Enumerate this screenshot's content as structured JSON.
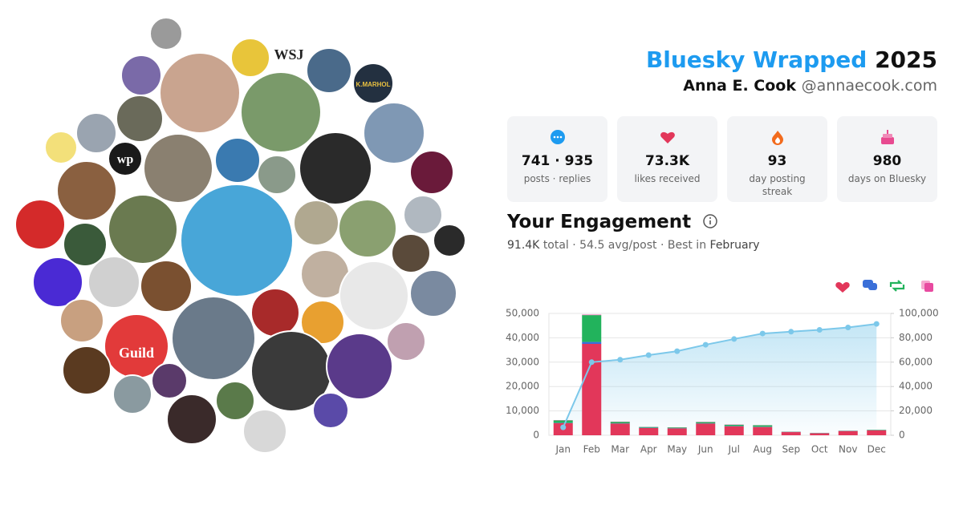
{
  "header": {
    "title_brand": "Bluesky Wrapped",
    "title_year": "2025",
    "name": "Anna E. Cook",
    "handle": "@annaecook.com"
  },
  "collage": {
    "labels": [
      "WSJ",
      "wp",
      "K.MARHOL",
      "Guild"
    ]
  },
  "stats": [
    {
      "value": "741 · 935",
      "label": "posts · replies"
    },
    {
      "value": "73.3K",
      "label": "likes received"
    },
    {
      "value": "93",
      "label": "day posting streak"
    },
    {
      "value": "980",
      "label": "days on Bluesky"
    }
  ],
  "engagement": {
    "title": "Your Engagement",
    "total": "91.4K",
    "total_label": "total",
    "avg": "· 54.5 avg/post · Best in",
    "best": "February"
  },
  "chart_data": {
    "type": "bar",
    "categories": [
      "Jan",
      "Feb",
      "Mar",
      "Apr",
      "May",
      "Jun",
      "Jul",
      "Aug",
      "Sep",
      "Oct",
      "Nov",
      "Dec"
    ],
    "series": [
      {
        "color": "#e2375a",
        "values": [
          5000,
          37500,
          4800,
          3000,
          2800,
          4800,
          3700,
          3400,
          1300,
          800,
          1700,
          2000
        ]
      },
      {
        "color": "#3a6fd8",
        "values": [
          100,
          800,
          100,
          100,
          100,
          100,
          100,
          100,
          50,
          50,
          50,
          50
        ]
      },
      {
        "color": "#22b35c",
        "values": [
          1000,
          11000,
          600,
          300,
          300,
          500,
          500,
          600,
          100,
          100,
          100,
          200
        ]
      },
      {
        "color": "#e84aa0",
        "values": [
          100,
          200,
          100,
          50,
          50,
          100,
          100,
          50,
          50,
          50,
          50,
          50
        ]
      },
      {
        "type": "line",
        "axis": "y2",
        "color": "#7cc8ea",
        "values": [
          6500,
          60000,
          62000,
          65800,
          69000,
          74300,
          79000,
          83500,
          85000,
          86500,
          88500,
          91400
        ]
      }
    ],
    "ylim": [
      0,
      50000
    ],
    "yticks": [
      0,
      {
        "value": 10000,
        "label": "10,000"
      },
      {
        "value": 20000,
        "label": "20,000"
      },
      {
        "value": 30000,
        "label": "30,000"
      },
      {
        "value": 40000,
        "label": "40,000"
      },
      {
        "value": 50000,
        "label": "50,000"
      }
    ],
    "y2lim": [
      0,
      100000
    ],
    "y2ticks": [
      0,
      {
        "value": 20000,
        "label": "20,000"
      },
      {
        "value": 40000,
        "label": "40,000"
      },
      {
        "value": 60000,
        "label": "60,000"
      },
      {
        "value": 80000,
        "label": "80,000"
      },
      {
        "value": 100000,
        "label": "100,000"
      }
    ],
    "grid": true
  }
}
